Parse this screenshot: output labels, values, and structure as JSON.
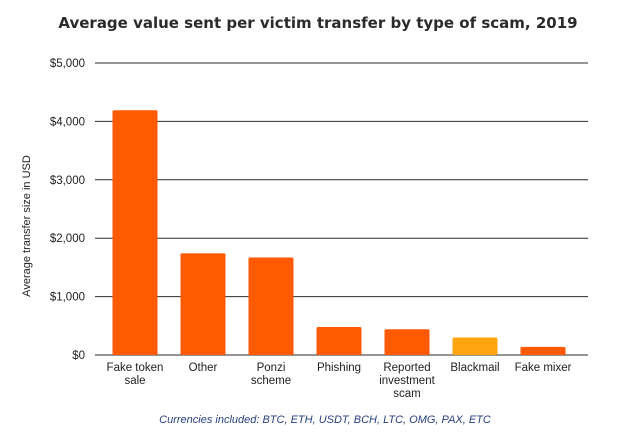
{
  "chart_data": {
    "type": "bar",
    "title": "Average value sent per victim transfer by type of scam, 2019",
    "ylabel": "Average transfer size in USD",
    "xlabel": "",
    "ylim": [
      0,
      5000
    ],
    "yticks": [
      0,
      1000,
      2000,
      3000,
      4000,
      5000
    ],
    "ytick_labels": [
      "$0",
      "$1,000",
      "$2,000",
      "$3,000",
      "$4,000",
      "$5,000"
    ],
    "grid": true,
    "categories": [
      [
        "Fake token",
        "sale"
      ],
      [
        "Other"
      ],
      [
        "Ponzi",
        "scheme"
      ],
      [
        "Phishing"
      ],
      [
        "Reported",
        "investment",
        "scam"
      ],
      [
        "Blackmail"
      ],
      [
        "Fake mixer"
      ]
    ],
    "values": [
      4190,
      1740,
      1670,
      480,
      440,
      300,
      140
    ],
    "colors": [
      "#ff5a00",
      "#ff5a00",
      "#ff5a00",
      "#ff5a00",
      "#ff5a00",
      "#ffa511",
      "#ff5a00"
    ],
    "footnote": "Currencies included: BTC, ETH, USDT, BCH, LTC, OMG, PAX, ETC"
  }
}
